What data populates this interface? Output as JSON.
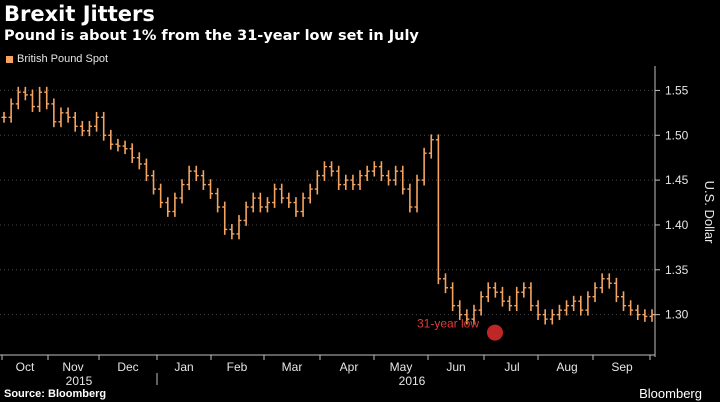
{
  "header": {
    "title": "Brexit Jitters",
    "subtitle": "Pound is about 1% from the 31-year low set in July"
  },
  "legend": {
    "label": "British Pound Spot"
  },
  "footer": {
    "source": "Source: Bloomberg",
    "brand": "Bloomberg"
  },
  "colors": {
    "series": "#f4a460",
    "annotation": "#d42a2a",
    "grid": "#444444",
    "axis": "#bfbfbf"
  },
  "chart_data": {
    "type": "candlestick",
    "title": "Brexit Jitters",
    "subtitle": "Pound is about 1% from the 31-year low set in July",
    "ylabel": "U.S. Dollar",
    "ylim": [
      1.255,
      1.575
    ],
    "yticks": [
      1.3,
      1.35,
      1.4,
      1.45,
      1.5,
      1.55
    ],
    "grid": "horizontal dotted",
    "legend_position": "top-left",
    "series": [
      {
        "name": "British Pound Spot"
      }
    ],
    "x_axis": {
      "months": [
        "Oct",
        "Nov",
        "Dec",
        "Jan",
        "Feb",
        "Mar",
        "Apr",
        "May",
        "Jun",
        "Jul",
        "Aug",
        "Sep"
      ],
      "years": [
        "2015",
        "2016"
      ]
    },
    "weekly_close": [
      1.52,
      1.535,
      1.548,
      1.545,
      1.532,
      1.548,
      1.535,
      1.515,
      1.525,
      1.52,
      1.51,
      1.505,
      1.51,
      1.52,
      1.5,
      1.49,
      1.488,
      1.485,
      1.475,
      1.468,
      1.455,
      1.44,
      1.425,
      1.415,
      1.43,
      1.445,
      1.46,
      1.455,
      1.445,
      1.435,
      1.42,
      1.395,
      1.39,
      1.405,
      1.42,
      1.43,
      1.42,
      1.425,
      1.44,
      1.43,
      1.425,
      1.415,
      1.43,
      1.44,
      1.455,
      1.465,
      1.46,
      1.445,
      1.45,
      1.445,
      1.455,
      1.46,
      1.465,
      1.455,
      1.45,
      1.46,
      1.44,
      1.42,
      1.45,
      1.48,
      1.495,
      1.34,
      1.33,
      1.31,
      1.3,
      1.295,
      1.305,
      1.32,
      1.33,
      1.325,
      1.315,
      1.31,
      1.325,
      1.33,
      1.31,
      1.3,
      1.295,
      1.3,
      1.305,
      1.31,
      1.315,
      1.305,
      1.32,
      1.33,
      1.34,
      1.335,
      1.32,
      1.31,
      1.305,
      1.3,
      1.298,
      1.3
    ],
    "annotations": [
      {
        "label": "31-year low",
        "date": "July 2016",
        "value": 1.28
      }
    ]
  }
}
